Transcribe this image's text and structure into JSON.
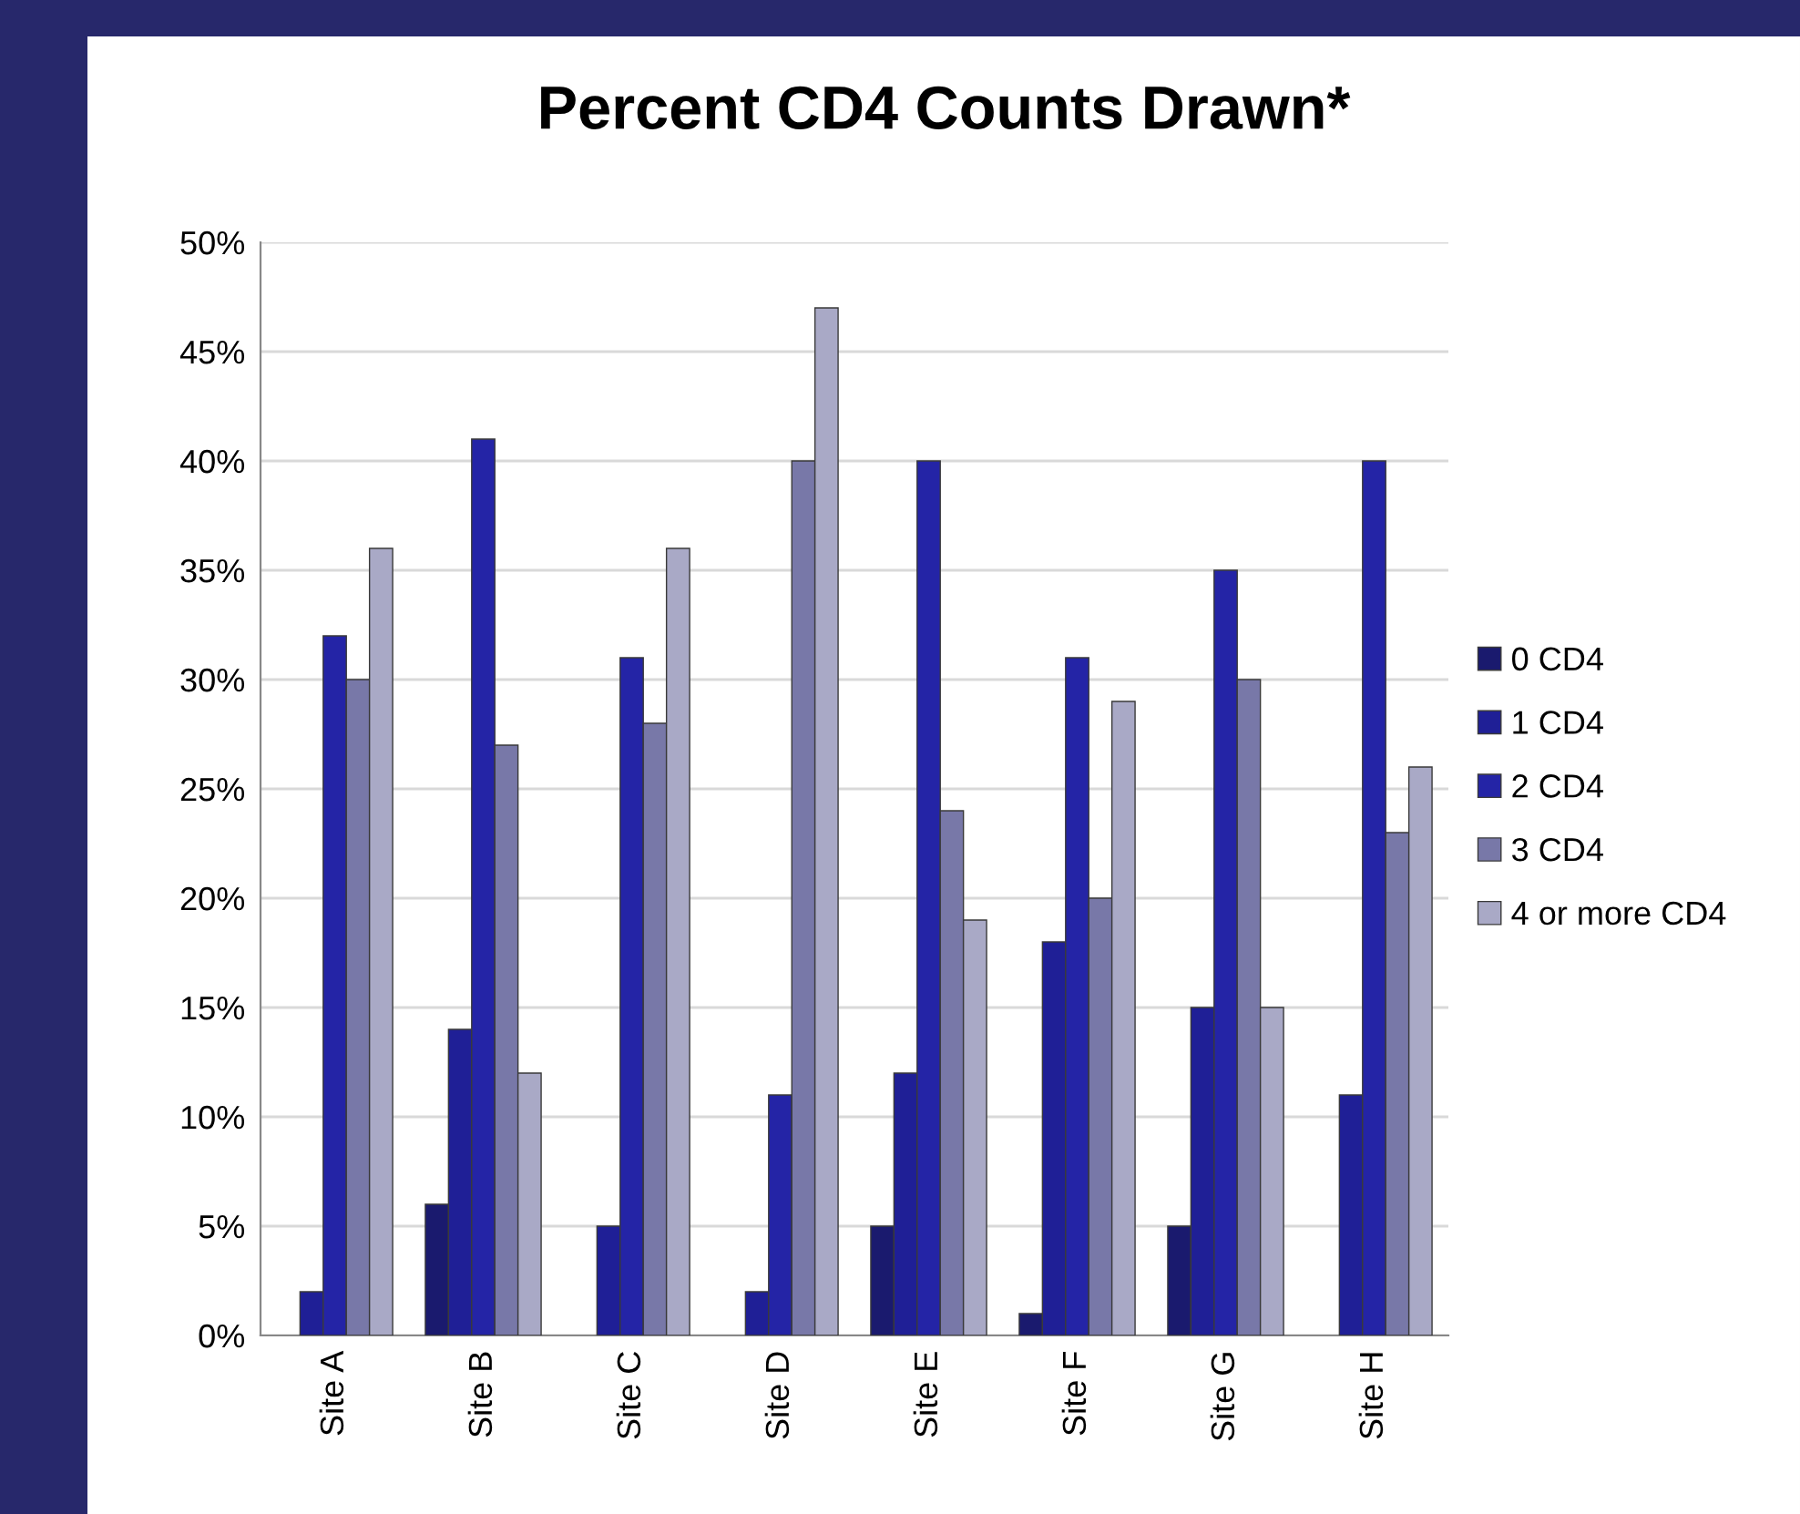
{
  "chart_data": {
    "type": "bar",
    "title": "Percent CD4 Counts Drawn*",
    "categories": [
      "Site A",
      "Site B",
      "Site C",
      "Site D",
      "Site E",
      "Site F",
      "Site G",
      "Site H"
    ],
    "series": [
      {
        "name": "0 CD4",
        "color": "#1a1a6e",
        "values": [
          0,
          6,
          0,
          0,
          5,
          1,
          5,
          0
        ]
      },
      {
        "name": "1 CD4",
        "color": "#1f1f96",
        "values": [
          2,
          14,
          5,
          2,
          12,
          18,
          15,
          11
        ]
      },
      {
        "name": "2 CD4",
        "color": "#2424a6",
        "values": [
          32,
          41,
          31,
          11,
          40,
          31,
          35,
          40
        ]
      },
      {
        "name": "3 CD4",
        "color": "#7878a8",
        "values": [
          30,
          27,
          28,
          40,
          24,
          20,
          30,
          23
        ]
      },
      {
        "name": "4 or more CD4",
        "color": "#a9a9c6",
        "values": [
          36,
          12,
          36,
          47,
          19,
          29,
          15,
          26
        ]
      }
    ],
    "ylim": [
      0,
      50
    ],
    "yticks": [
      {
        "value": 0,
        "label": "0%"
      },
      {
        "value": 5,
        "label": "5%"
      },
      {
        "value": 10,
        "label": "10%"
      },
      {
        "value": 15,
        "label": "15%"
      },
      {
        "value": 20,
        "label": "20%"
      },
      {
        "value": 25,
        "label": "25%"
      },
      {
        "value": 30,
        "label": "30%"
      },
      {
        "value": 35,
        "label": "35%"
      },
      {
        "value": 40,
        "label": "40%"
      },
      {
        "value": 45,
        "label": "45%"
      },
      {
        "value": 50,
        "label": "50%"
      }
    ],
    "grid": "y",
    "legend": "right"
  }
}
